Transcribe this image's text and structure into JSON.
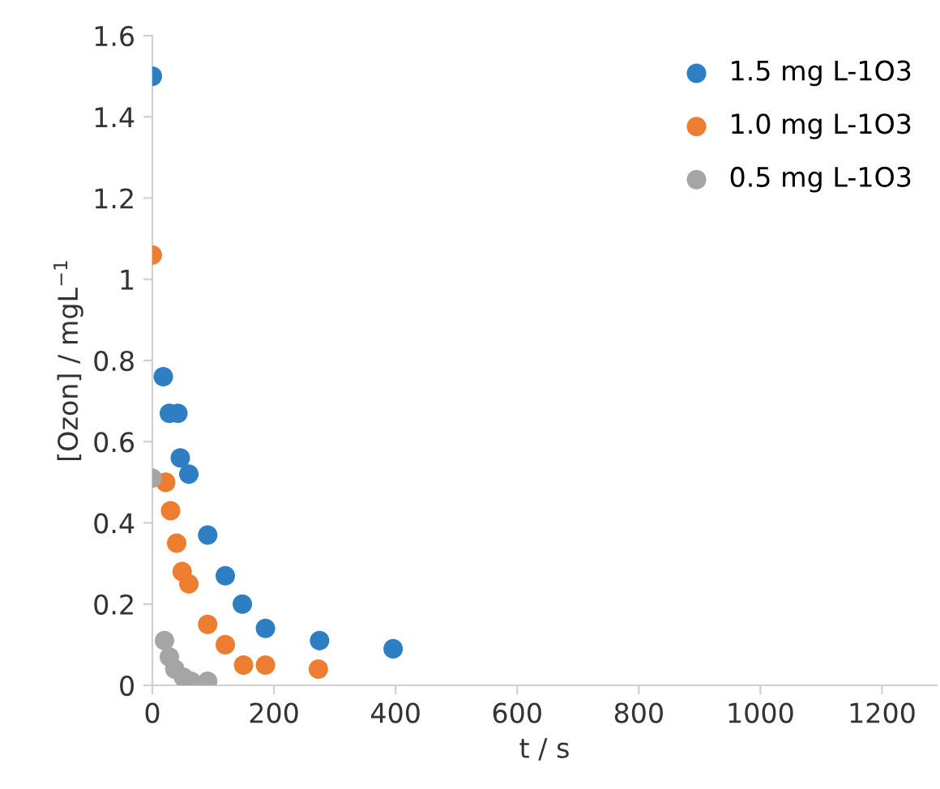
{
  "chart_data": {
    "type": "scatter",
    "xlabel": "t / s",
    "ylabel": "[Ozon] / mgL$^{−1}$",
    "xlim": [
      0,
      1290
    ],
    "xticks": [
      0,
      200,
      400,
      600,
      800,
      1000,
      1200
    ],
    "ylim": [
      0,
      1.6
    ],
    "yticks": [
      0,
      0.2,
      0.4,
      0.6,
      0.8,
      1,
      1.2,
      1.4,
      1.6
    ],
    "grid": false,
    "legend": "top right",
    "marker": "circle",
    "series": [
      {
        "name": "1.5 mg L-1O3",
        "color": "#2e7ec4",
        "x": [
          0,
          18,
          28,
          42,
          46,
          60,
          91,
          120,
          148,
          186,
          275,
          396
        ],
        "values": [
          1.5,
          0.76,
          0.67,
          0.67,
          0.56,
          0.52,
          0.37,
          0.27,
          0.2,
          0.14,
          0.11,
          0.09
        ]
      },
      {
        "name": "1.0 mg L-1O3",
        "color": "#ed7d31",
        "x": [
          0,
          22,
          30,
          40,
          49,
          60,
          91,
          120,
          150,
          186,
          273
        ],
        "values": [
          1.06,
          0.5,
          0.43,
          0.35,
          0.28,
          0.25,
          0.15,
          0.1,
          0.05,
          0.05,
          0.04
        ]
      },
      {
        "name": "0.5 mg L-1O3",
        "color": "#a5a5a5",
        "x": [
          0,
          20,
          28,
          37,
          51,
          64,
          91
        ],
        "values": [
          0.51,
          0.11,
          0.07,
          0.04,
          0.02,
          0.01,
          0.01
        ]
      }
    ]
  }
}
